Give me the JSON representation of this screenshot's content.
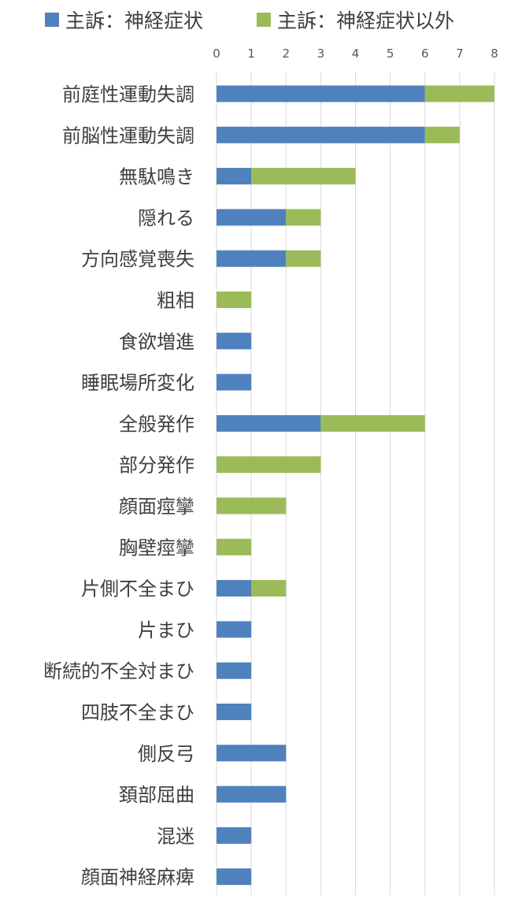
{
  "chart_data": {
    "type": "bar",
    "orientation": "horizontal",
    "stacked": true,
    "categories": [
      "前庭性運動失調",
      "前脳性運動失調",
      "無駄鳴き",
      "隠れる",
      "方向感覚喪失",
      "粗相",
      "食欲増進",
      "睡眠場所変化",
      "全般発作",
      "部分発作",
      "顔面痙攣",
      "胸壁痙攣",
      "片側不全まひ",
      "片まひ",
      "断続的不全対まひ",
      "四肢不全まひ",
      "側反弓",
      "頚部屈曲",
      "混迷",
      "顔面神経麻痺"
    ],
    "series": [
      {
        "name": "主訴：神経症状",
        "color": "#4f81bd",
        "values": [
          6,
          6,
          1,
          2,
          2,
          0,
          1,
          1,
          3,
          0,
          0,
          0,
          1,
          1,
          1,
          1,
          2,
          2,
          1,
          1
        ]
      },
      {
        "name": "主訴：神経症状以外",
        "color": "#9bbb59",
        "values": [
          2,
          1,
          3,
          1,
          1,
          1,
          0,
          0,
          3,
          3,
          2,
          1,
          1,
          0,
          0,
          0,
          0,
          0,
          0,
          0
        ]
      }
    ],
    "xlim": [
      0,
      8
    ],
    "xticks": [
      "0",
      "1",
      "2",
      "3",
      "4",
      "5",
      "6",
      "7",
      "8"
    ],
    "grid": true,
    "legend_position": "top"
  }
}
